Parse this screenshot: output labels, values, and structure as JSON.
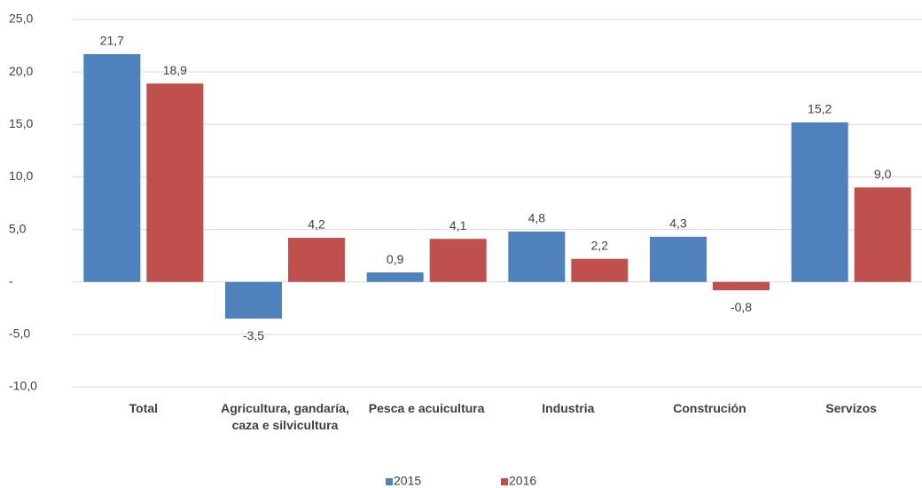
{
  "chart_data": {
    "type": "bar",
    "categories": [
      "Total",
      "Agricultura, gandaría, caza e silvicultura",
      "Pesca e acuicultura",
      "Industria",
      "Construción",
      "Servizos"
    ],
    "series": [
      {
        "name": "2015",
        "color": "#4f81bd",
        "values": [
          21.7,
          -3.5,
          0.9,
          4.8,
          4.3,
          15.2
        ],
        "value_labels": [
          "21,7",
          "-3,5",
          "0,9",
          "4,8",
          "4,3",
          "15,2"
        ]
      },
      {
        "name": "2016",
        "color": "#c0504d",
        "values": [
          18.9,
          4.2,
          4.1,
          2.2,
          -0.8,
          9.0
        ],
        "value_labels": [
          "18,9",
          "4,2",
          "4,1",
          "2,2",
          "-0,8",
          "9,0"
        ]
      }
    ],
    "ylim": [
      -10,
      25
    ],
    "yticks": [
      {
        "value": -10,
        "label": "-10,0"
      },
      {
        "value": -5,
        "label": "-5,0"
      },
      {
        "value": 0,
        "label": "-"
      },
      {
        "value": 5,
        "label": "5,0"
      },
      {
        "value": 10,
        "label": "10,0"
      },
      {
        "value": 15,
        "label": "15,0"
      },
      {
        "value": 20,
        "label": "20,0"
      },
      {
        "value": 25,
        "label": "25,0"
      }
    ],
    "grid": true,
    "legend": "bottom"
  }
}
